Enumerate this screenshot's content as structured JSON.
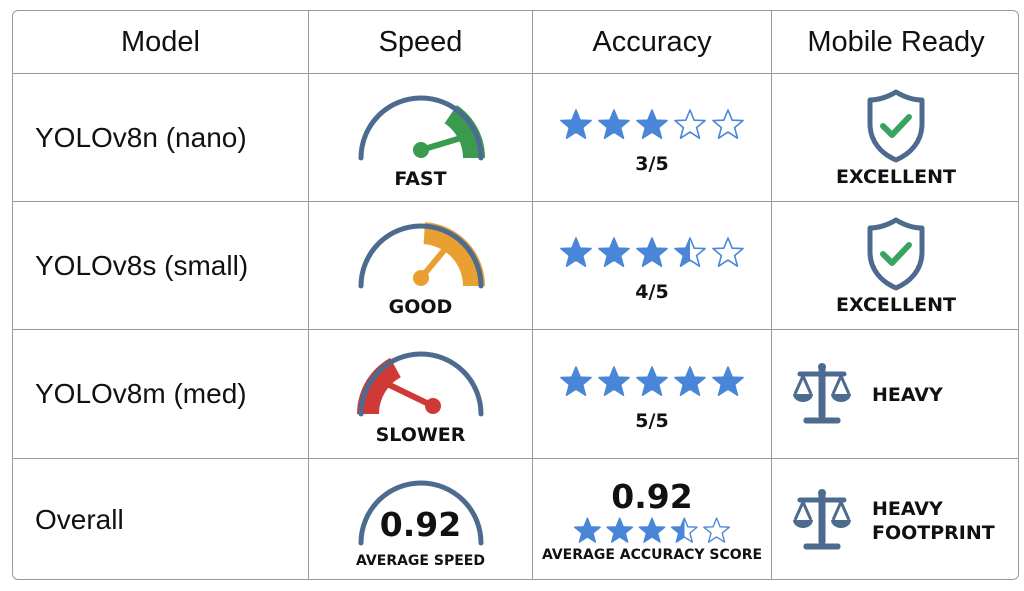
{
  "headers": {
    "model": "Model",
    "speed": "Speed",
    "accuracy": "Accuracy",
    "mobile": "Mobile Ready"
  },
  "colors": {
    "star": "#4a86d8",
    "gauge_arc": "#4d6a8f",
    "fast": "#3a9a4e",
    "good": "#f0a830",
    "slower": "#d03a36",
    "check": "#3aa360",
    "icon": "#4d6a8f"
  },
  "rows": [
    {
      "model": "YOLOv8n (nano)",
      "speed_label": "FAST",
      "speed_level": 0.86,
      "speed_color": "#3a9a4e",
      "stars": 3,
      "accuracy_label": "3/5",
      "mobile_icon": "shield-check-icon",
      "mobile_label": "EXCELLENT"
    },
    {
      "model": "YOLOv8s (small)",
      "speed_label": "GOOD",
      "speed_level": 0.69,
      "speed_color": "#e9a030",
      "stars": 3.5,
      "accuracy_label": "4/5",
      "mobile_icon": "shield-check-icon",
      "mobile_label": "EXCELLENT"
    },
    {
      "model": "YOLOv8m (med)",
      "speed_label": "SLOWER",
      "speed_level": 0.22,
      "speed_color": "#d03a36",
      "stars": 5,
      "accuracy_label": "5/5",
      "mobile_icon": "scale-icon",
      "mobile_label": "HEAVY"
    }
  ],
  "overall": {
    "model": "Overall",
    "speed_value": "0.92",
    "speed_label": "AVERAGE SPEED",
    "accuracy_value": "0.92",
    "stars": 3.5,
    "accuracy_label": "AVERAGE ACCURACY SCORE",
    "mobile_icon": "scale-icon",
    "mobile_label_1": "HEAVY",
    "mobile_label_2": "FOOTPRINT"
  }
}
